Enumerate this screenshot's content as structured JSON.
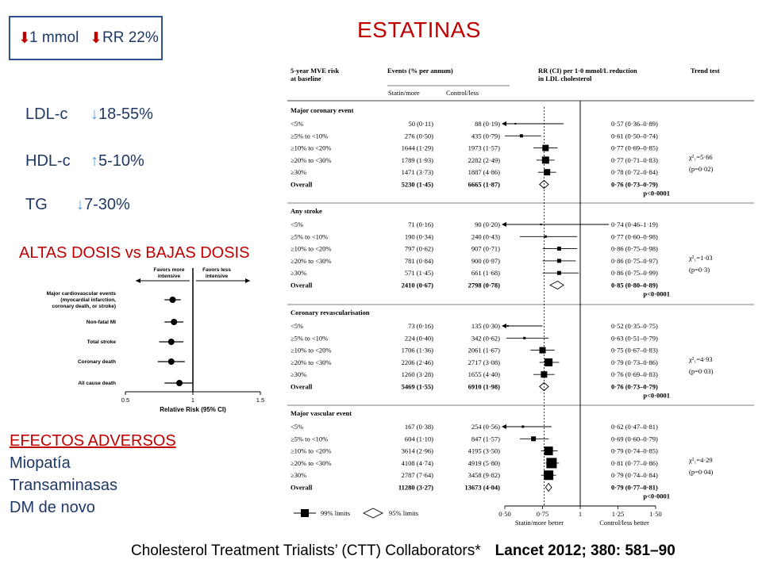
{
  "title": "ESTATINAS",
  "rr_box": {
    "line1": "1 mmol",
    "line2": "RR 22%"
  },
  "lipids": [
    {
      "name": "LDL-c",
      "direction": "down",
      "value": "18-55%"
    },
    {
      "name": "HDL-c",
      "direction": "up",
      "value": "5-10%"
    },
    {
      "name": "TG",
      "direction": "down",
      "value": "7-30%"
    }
  ],
  "dose": {
    "title": "ALTAS DOSIS vs BAJAS DOSIS",
    "favors_left": [
      "Favors more",
      "intensive"
    ],
    "favors_right": [
      "Favors less",
      "intensive"
    ],
    "xlabel": "Relative Risk (95% CI)",
    "ticks": [
      "0.5",
      "1",
      "1.5"
    ],
    "rows": [
      {
        "label": [
          "Major cardiovascular events",
          "(myocardial infarction,",
          "coronary death, or stroke)"
        ],
        "rr": 0.85,
        "lo": 0.79,
        "hi": 0.91
      },
      {
        "label": [
          "Non-fatal MI"
        ],
        "rr": 0.86,
        "lo": 0.79,
        "hi": 0.93
      },
      {
        "label": [
          "Total stroke"
        ],
        "rr": 0.84,
        "lo": 0.75,
        "hi": 0.93
      },
      {
        "label": [
          "Coronary death"
        ],
        "rr": 0.84,
        "lo": 0.74,
        "hi": 0.94
      },
      {
        "label": [
          "All cause death"
        ],
        "rr": 0.9,
        "lo": 0.79,
        "hi": 1.0
      }
    ]
  },
  "adverse": {
    "title": "EFECTOS ADVERSOS",
    "items": [
      "Miopatía",
      "Transaminasas",
      "DM de novo"
    ]
  },
  "citation": {
    "authors": "Cholesterol Treatment Trialists’ (CTT) Collaborators*",
    "ref": "Lancet 2012; 380: 581–90"
  },
  "forest": {
    "headers": {
      "risk": [
        "5-year MVE risk",
        "at baseline"
      ],
      "events": "Events (% per annum)",
      "statin": "Statin/more",
      "control": "Control/less",
      "rr": [
        "RR (CI) per 1·0 mmol/L reduction",
        "in LDL cholesterol"
      ],
      "trend": "Trend test"
    },
    "axis": {
      "ticks": [
        "0·50",
        "0·75",
        "1",
        "1·25",
        "1·50"
      ],
      "left_label": "Statin/more better",
      "right_label": "Control/less better"
    },
    "legend": {
      "filled": "99% limits",
      "open": "95% limits"
    },
    "sections": [
      {
        "title": "Major coronary event",
        "trend": [
          "χ²₁=5·66",
          "(p=0·02)"
        ],
        "p": "p<0·0001",
        "rows": [
          {
            "label": "<5%",
            "statin": "50 (0·11)",
            "control": "88 (0·19)",
            "ci": "0·57 (0·36–0·89)",
            "rr": 0.57,
            "lo": 0.36,
            "hi": 0.89,
            "w": 2
          },
          {
            "label": "≥5% to <10%",
            "statin": "276 (0·50)",
            "control": "435 (0·79)",
            "ci": "0·61 (0·50–0·74)",
            "rr": 0.61,
            "lo": 0.5,
            "hi": 0.74,
            "w": 4
          },
          {
            "label": "≥10% to <20%",
            "statin": "1644 (1·29)",
            "control": "1973 (1·57)",
            "ci": "0·77 (0·69–0·85)",
            "rr": 0.77,
            "lo": 0.69,
            "hi": 0.85,
            "w": 8
          },
          {
            "label": "≥20% to <30%",
            "statin": "1789 (1·93)",
            "control": "2282 (2·49)",
            "ci": "0·77 (0·71–0·83)",
            "rr": 0.77,
            "lo": 0.71,
            "hi": 0.83,
            "w": 9
          },
          {
            "label": "≥30%",
            "statin": "1471 (3·73)",
            "control": "1887 (4·86)",
            "ci": "0·78 (0·72–0·84)",
            "rr": 0.78,
            "lo": 0.72,
            "hi": 0.84,
            "w": 8
          },
          {
            "label": "Overall",
            "statin": "5230 (1·45)",
            "control": "6665 (1·87)",
            "ci": "0·76 (0·73–0·79)",
            "rr": 0.76,
            "lo": 0.73,
            "hi": 0.79,
            "overall": true
          }
        ]
      },
      {
        "title": "Any stroke",
        "trend": [
          "χ²₁=1·03",
          "(p=0·3)"
        ],
        "p": "p<0·0001",
        "rows": [
          {
            "label": "<5%",
            "statin": "71 (0·16)",
            "control": "90 (0·20)",
            "ci": "0·74 (0·46–1·19)",
            "rr": 0.74,
            "lo": 0.46,
            "hi": 1.19,
            "w": 2,
            "arrow_left": true
          },
          {
            "label": "≥5% to <10%",
            "statin": "190 (0·34)",
            "control": "240 (0·43)",
            "ci": "0·77 (0·60–0·98)",
            "rr": 0.77,
            "lo": 0.6,
            "hi": 0.98,
            "w": 3
          },
          {
            "label": "≥10% to <20%",
            "statin": "797 (0·62)",
            "control": "907 (0·71)",
            "ci": "0·86 (0·75–0·98)",
            "rr": 0.86,
            "lo": 0.75,
            "hi": 0.98,
            "w": 5
          },
          {
            "label": "≥20% to <30%",
            "statin": "781 (0·84)",
            "control": "900 (0·97)",
            "ci": "0·86 (0·75–0·97)",
            "rr": 0.86,
            "lo": 0.75,
            "hi": 0.97,
            "w": 5
          },
          {
            "label": "≥30%",
            "statin": "571 (1·45)",
            "control": "661 (1·68)",
            "ci": "0·86 (0·75–0·99)",
            "rr": 0.86,
            "lo": 0.75,
            "hi": 0.99,
            "w": 5
          },
          {
            "label": "Overall",
            "statin": "2410 (0·67)",
            "control": "2798 (0·78)",
            "ci": "0·85 (0·80–0·89)",
            "rr": 0.85,
            "lo": 0.8,
            "hi": 0.89,
            "overall": true
          }
        ]
      },
      {
        "title": "Coronary revascularisation",
        "trend": [
          "χ²₁=4·93",
          "(p=0·03)"
        ],
        "p": "p<0·0001",
        "rows": [
          {
            "label": "<5%",
            "statin": "73 (0·16)",
            "control": "135 (0·30)",
            "ci": "0·52 (0·35–0·75)",
            "rr": 0.52,
            "lo": 0.35,
            "hi": 0.75,
            "w": 2,
            "arrow_left": true
          },
          {
            "label": "≥5% to <10%",
            "statin": "224 (0·40)",
            "control": "342 (0·62)",
            "ci": "0·63 (0·51–0·79)",
            "rr": 0.63,
            "lo": 0.51,
            "hi": 0.79,
            "w": 3
          },
          {
            "label": "≥10% to <20%",
            "statin": "1706 (1·36)",
            "control": "2061 (1·67)",
            "ci": "0·75 (0·67–0·83)",
            "rr": 0.75,
            "lo": 0.67,
            "hi": 0.83,
            "w": 8
          },
          {
            "label": "≥20% to <30%",
            "statin": "2206 (2·46)",
            "control": "2717 (3·08)",
            "ci": "0·79 (0·73–0·86)",
            "rr": 0.79,
            "lo": 0.73,
            "hi": 0.86,
            "w": 10
          },
          {
            "label": "≥30%",
            "statin": "1260 (3·28)",
            "control": "1655 (4·40)",
            "ci": "0·76 (0·69–0·83)",
            "rr": 0.76,
            "lo": 0.69,
            "hi": 0.83,
            "w": 8
          },
          {
            "label": "Overall",
            "statin": "5469 (1·55)",
            "control": "6910 (1·98)",
            "ci": "0·76 (0·73–0·79)",
            "rr": 0.76,
            "lo": 0.73,
            "hi": 0.79,
            "overall": true
          }
        ]
      },
      {
        "title": "Major vascular event",
        "trend": [
          "χ²₁=4·29",
          "(p=0·04)"
        ],
        "p": "p<0·0001",
        "rows": [
          {
            "label": "<5%",
            "statin": "167 (0·38)",
            "control": "254 (0·56)",
            "ci": "0·62 (0·47–0·81)",
            "rr": 0.62,
            "lo": 0.47,
            "hi": 0.81,
            "w": 3
          },
          {
            "label": "≥5% to <10%",
            "statin": "604 (1·10)",
            "control": "847 (1·57)",
            "ci": "0·69 (0·60–0·79)",
            "rr": 0.69,
            "lo": 0.6,
            "hi": 0.79,
            "w": 6
          },
          {
            "label": "≥10% to <20%",
            "statin": "3614 (2·96)",
            "control": "4195 (3·50)",
            "ci": "0·79 (0·74–0·85)",
            "rr": 0.79,
            "lo": 0.74,
            "hi": 0.85,
            "w": 11
          },
          {
            "label": "≥20% to <30%",
            "statin": "4108 (4·74)",
            "control": "4919 (5·80)",
            "ci": "0·81 (0·77–0·86)",
            "rr": 0.81,
            "lo": 0.77,
            "hi": 0.86,
            "w": 13
          },
          {
            "label": "≥30%",
            "statin": "2787 (7·64)",
            "control": "3458 (9·82)",
            "ci": "0·79 (0·74–0·84)",
            "rr": 0.79,
            "lo": 0.74,
            "hi": 0.84,
            "w": 12
          },
          {
            "label": "Overall",
            "statin": "11280 (3·27)",
            "control": "13673 (4·04)",
            "ci": "0·79 (0·77–0·81)",
            "rr": 0.79,
            "lo": 0.77,
            "hi": 0.81,
            "overall": true
          }
        ]
      }
    ]
  }
}
